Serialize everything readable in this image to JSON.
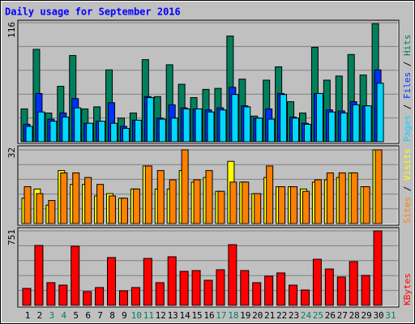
{
  "title": "Daily usage for September 2016",
  "legend_separator": " / ",
  "chart_data": [
    {
      "type": "bar",
      "ylim": [
        0,
        116
      ],
      "yticks": [
        116
      ],
      "series": [
        {
          "name": "Hits",
          "color": "#00805c",
          "values": [
            32,
            90,
            28,
            54,
            84,
            32,
            34,
            70,
            23,
            28,
            80,
            44,
            75,
            56,
            43,
            51,
            52,
            103,
            61,
            25,
            60,
            73,
            39,
            28,
            92,
            60,
            64,
            85,
            65,
            115,
            null
          ]
        },
        {
          "name": "Files",
          "color": "#0030ff",
          "values": [
            17,
            47,
            22,
            28,
            42,
            18,
            20,
            38,
            15,
            21,
            44,
            23,
            36,
            33,
            32,
            31,
            33,
            53,
            35,
            23,
            32,
            47,
            24,
            18,
            47,
            31,
            30,
            39,
            35,
            70,
            null
          ]
        },
        {
          "name": "Pages",
          "color": "#00d8ff",
          "values": [
            15,
            29,
            20,
            24,
            33,
            18,
            20,
            18,
            13,
            21,
            43,
            22,
            23,
            32,
            32,
            29,
            31,
            46,
            34,
            23,
            22,
            46,
            23,
            17,
            47,
            29,
            28,
            36,
            35,
            57,
            null
          ]
        }
      ]
    },
    {
      "type": "bar",
      "ylim": [
        0,
        32
      ],
      "yticks": [
        32
      ],
      "series": [
        {
          "name": "Visits",
          "color": "#ffff00",
          "values": [
            11,
            15,
            8,
            23,
            17,
            17,
            12,
            13,
            11,
            15,
            25,
            15,
            15,
            23,
            18,
            20,
            14,
            27,
            18,
            13,
            20,
            16,
            16,
            15,
            18,
            19,
            20,
            22,
            16,
            32,
            null
          ]
        },
        {
          "name": "Sites",
          "color": "#ff8000",
          "values": [
            16,
            13,
            10,
            22,
            22,
            20,
            17,
            12,
            11,
            15,
            25,
            23,
            19,
            32,
            19,
            23,
            14,
            18,
            18,
            13,
            25,
            16,
            16,
            14,
            19,
            22,
            22,
            22,
            16,
            32,
            null
          ]
        }
      ]
    },
    {
      "type": "bar",
      "ylim": [
        0,
        751
      ],
      "yticks": [
        751
      ],
      "categories": [
        "1",
        "2",
        "3",
        "4",
        "5",
        "6",
        "7",
        "8",
        "9",
        "10",
        "11",
        "12",
        "13",
        "14",
        "15",
        "16",
        "17",
        "18",
        "19",
        "20",
        "21",
        "22",
        "23",
        "24",
        "25",
        "26",
        "27",
        "28",
        "29",
        "30",
        "31"
      ],
      "weekend": [
        false,
        false,
        true,
        true,
        false,
        false,
        false,
        false,
        false,
        true,
        true,
        false,
        false,
        false,
        false,
        false,
        true,
        true,
        false,
        false,
        false,
        false,
        false,
        true,
        true,
        false,
        false,
        false,
        false,
        false,
        true
      ],
      "series": [
        {
          "name": "KBytes",
          "color": "#ff0000",
          "values": [
            171,
            604,
            229,
            204,
            596,
            139,
            180,
            482,
            147,
            180,
            473,
            229,
            490,
            343,
            351,
            253,
            359,
            612,
            351,
            229,
            294,
            327,
            204,
            155,
            465,
            367,
            286,
            441,
            302,
            751,
            null
          ]
        }
      ]
    }
  ]
}
